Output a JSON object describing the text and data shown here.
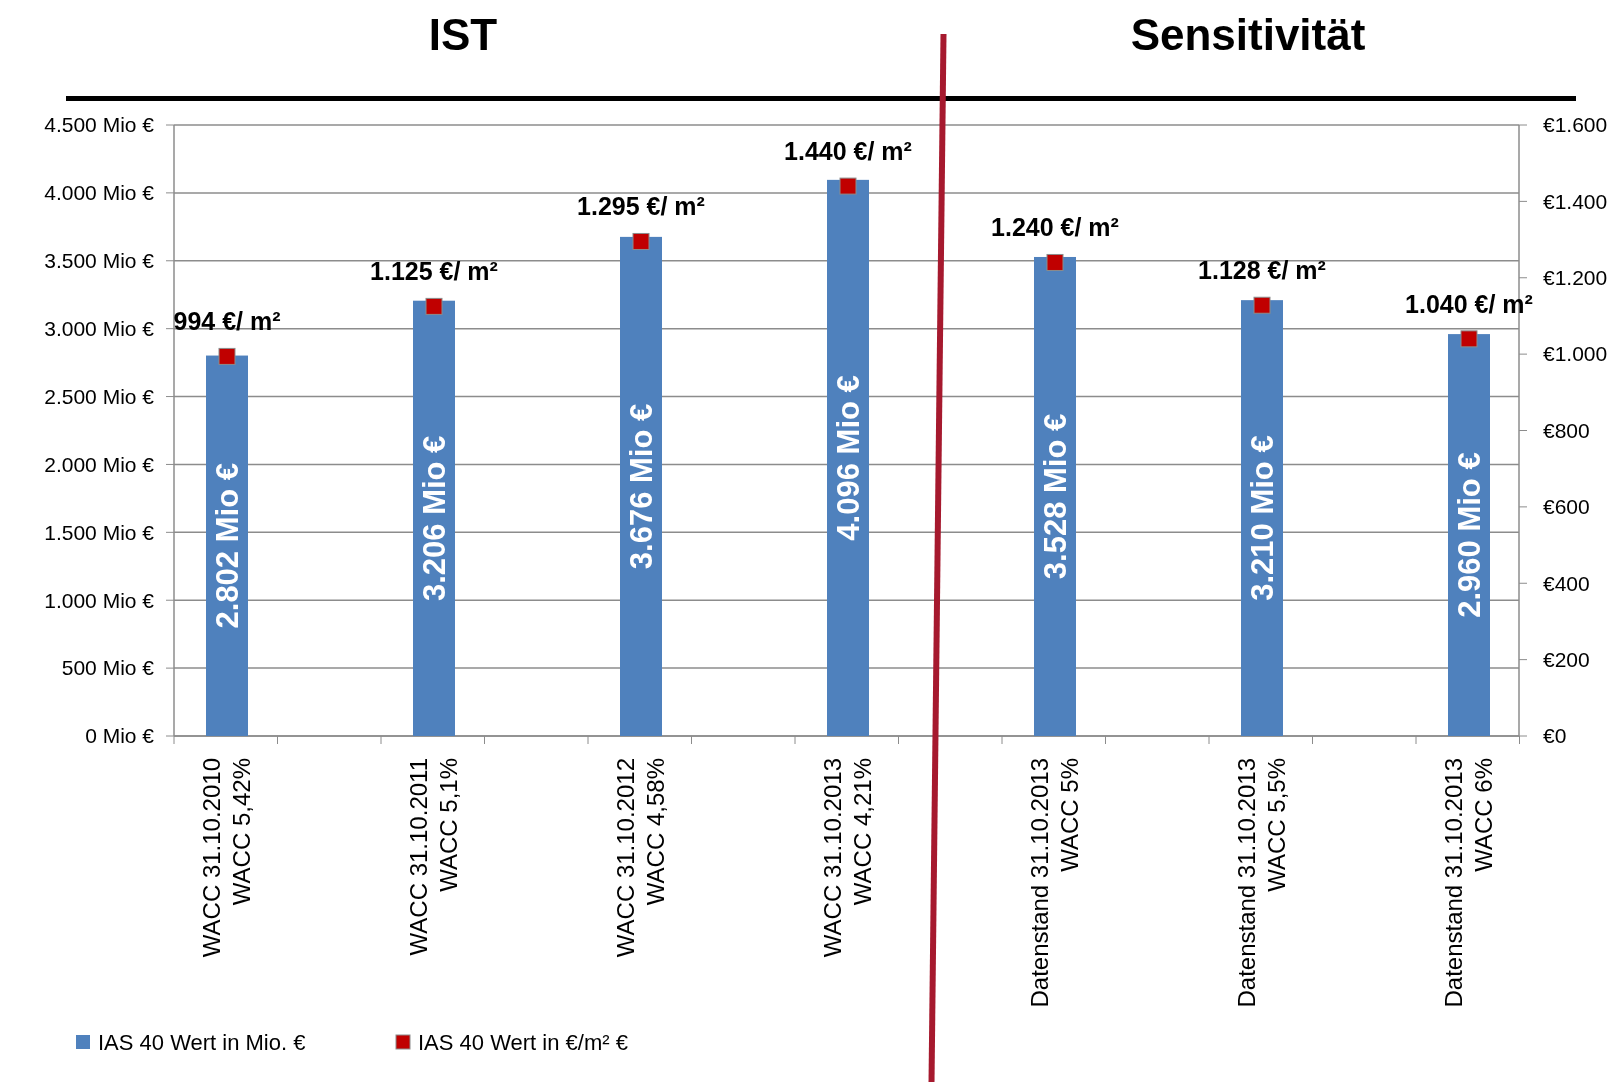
{
  "chart_data": {
    "type": "bar",
    "annotations": [
      "IST",
      "Sensitivität"
    ],
    "categories": [
      "WACC 31.10.2010\nWACC 5,42%",
      "WACC 31.10.2011\nWACC 5,1%",
      "WACC 31.10.2012\nWACC 4,58%",
      "WACC 31.10.2013\nWACC 4,21%",
      "Datenstand 31.10.2013\nWACC 5%",
      "Datenstand 31.10.2013\nWACC 5,5%",
      "Datenstand 31.10.2013\nWACC 6%"
    ],
    "series": [
      {
        "name": "IAS 40 Wert in Mio. €",
        "color": "#4f81bd",
        "values": [
          2802,
          3206,
          3676,
          4096,
          3528,
          3210,
          2960
        ],
        "value_labels": [
          "2.802 Mio €",
          "3.206 Mio €",
          "3.676 Mio €",
          "4.096 Mio €",
          "3.528 Mio €",
          "3.210 Mio €",
          "2.960 Mio €"
        ]
      },
      {
        "name": "IAS 40 Wert in €/m² €",
        "type": "scatter",
        "axis": "y2",
        "marker": "square",
        "color": "#c00000",
        "values": [
          994,
          1125,
          1295,
          1440,
          1240,
          1128,
          1040
        ],
        "value_labels": [
          "994 €/ m²",
          "1.125 €/ m²",
          "1.295 €/ m²",
          "1.440 €/ m²",
          "1.240 €/ m²",
          "1.128 €/ m²",
          "1.040 €/ m²"
        ]
      }
    ],
    "ylim": [
      0,
      4500
    ],
    "yticks": [
      {
        "value": 0,
        "label": "0 Mio €"
      },
      {
        "value": 500,
        "label": "500 Mio €"
      },
      {
        "value": 1000,
        "label": "1.000 Mio €"
      },
      {
        "value": 1500,
        "label": "1.500 Mio €"
      },
      {
        "value": 2000,
        "label": "2.000 Mio €"
      },
      {
        "value": 2500,
        "label": "2.500 Mio €"
      },
      {
        "value": 3000,
        "label": "3.000 Mio €"
      },
      {
        "value": 3500,
        "label": "3.500 Mio €"
      },
      {
        "value": 4000,
        "label": "4.000 Mio €"
      },
      {
        "value": 4500,
        "label": "4.500 Mio €"
      }
    ],
    "y2lim": [
      0,
      1600
    ],
    "y2ticks": [
      {
        "value": 0,
        "label": "€0"
      },
      {
        "value": 200,
        "label": "€200"
      },
      {
        "value": 400,
        "label": "€400"
      },
      {
        "value": 600,
        "label": "€600"
      },
      {
        "value": 800,
        "label": "€800"
      },
      {
        "value": 1000,
        "label": "€1.000"
      },
      {
        "value": 1200,
        "label": "€1.200"
      },
      {
        "value": 1400,
        "label": "€1.400"
      },
      {
        "value": 1600,
        "label": "€1.600"
      }
    ],
    "grid": "y",
    "legend": "bottom left"
  }
}
